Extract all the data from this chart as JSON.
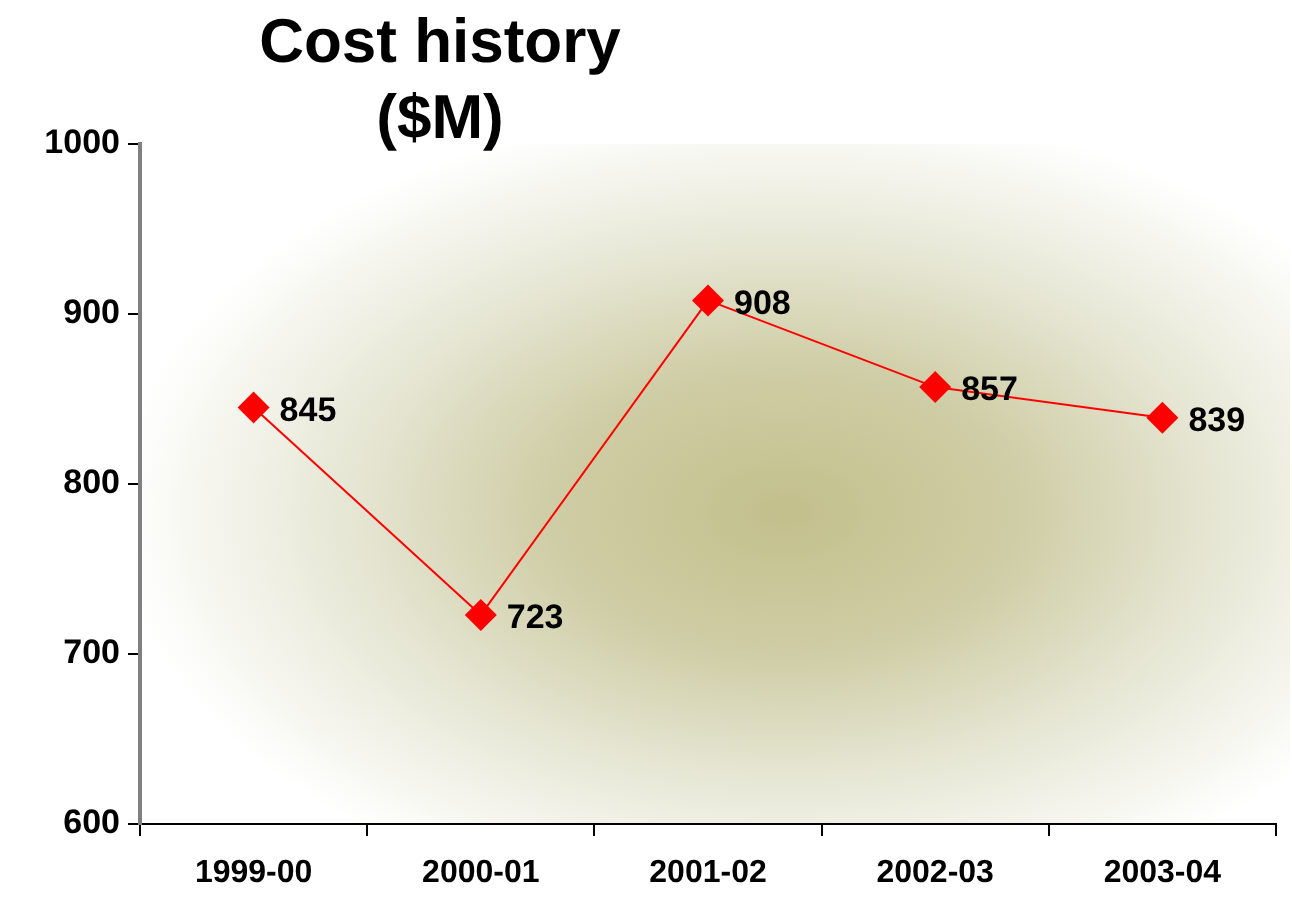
{
  "chart_data": {
    "type": "line",
    "title": "Cost history ($M)",
    "categories": [
      "1999-00",
      "2000-01",
      "2001-02",
      "2002-03",
      "2003-04"
    ],
    "values": [
      845,
      723,
      908,
      857,
      839
    ],
    "color": "#ff0000",
    "ylim": [
      600,
      1000
    ],
    "yticks": [
      600,
      700,
      800,
      900,
      1000
    ],
    "grid": false,
    "marker": "diamond",
    "line_style": "solid",
    "data_labels": true
  }
}
